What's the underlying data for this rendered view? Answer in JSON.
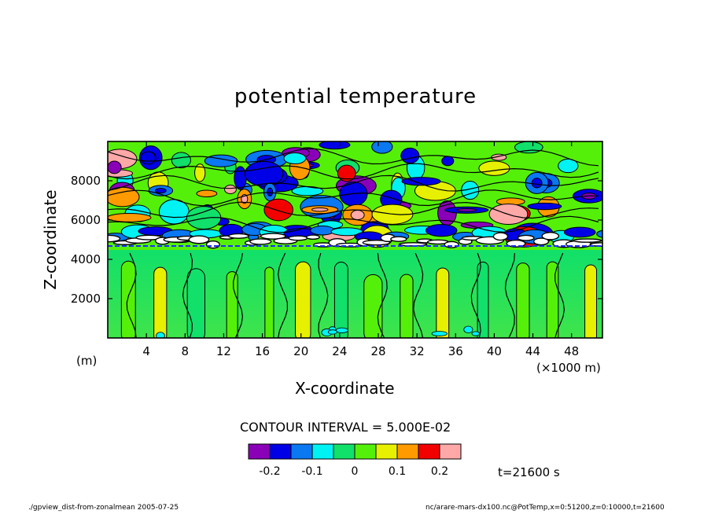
{
  "chart_data": {
    "type": "heatmap",
    "title": "potential temperature",
    "xlabel": "X-coordinate",
    "ylabel": "Z-coordinate",
    "x_unit_left": "(m)",
    "x_unit_right": "(×1000 m)",
    "xlim": [
      0,
      51.2
    ],
    "ylim": [
      0,
      10000
    ],
    "x_ticks": [
      "4",
      "8",
      "12",
      "16",
      "20",
      "24",
      "28",
      "32",
      "36",
      "40",
      "44",
      "48"
    ],
    "x_tick_values": [
      4,
      8,
      12,
      16,
      20,
      24,
      28,
      32,
      36,
      40,
      44,
      48
    ],
    "y_ticks": [
      "2000",
      "4000",
      "6000",
      "8000"
    ],
    "y_tick_values": [
      2000,
      4000,
      6000,
      8000
    ],
    "contour_interval_text": "CONTOUR INTERVAL = 5.000E-02",
    "colorbar": {
      "colors": [
        "#8a00b8",
        "#0000e6",
        "#0a78f0",
        "#00f2f2",
        "#11e06a",
        "#55f00a",
        "#e6f000",
        "#ff9a00",
        "#f20000",
        "#ffa8a8"
      ],
      "labels": [
        "-0.2",
        "-0.1",
        "0",
        "0.1",
        "0.2"
      ],
      "label_values": [
        -0.2,
        -0.1,
        0,
        0.1,
        0.2
      ],
      "range": [
        -0.25,
        0.25
      ]
    },
    "grid": false,
    "legend": "bottom"
  },
  "time_label": "t=21600 s",
  "footer": {
    "left": "./gpview_dist-from-zonalmean 2005-07-25",
    "right": "nc/arare-mars-dx100.nc@PotTemp,x=0:51200,z=0:10000,t=21600"
  }
}
